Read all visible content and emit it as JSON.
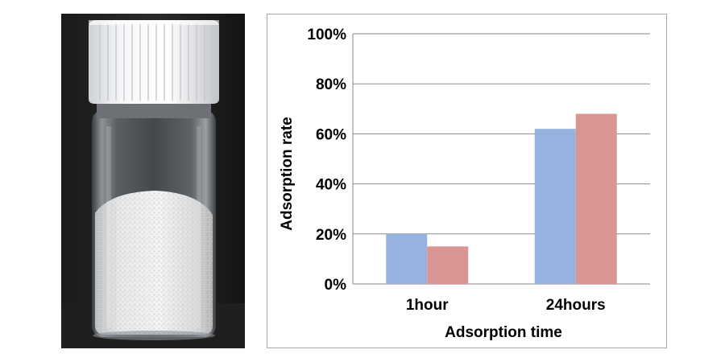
{
  "photo": {
    "name": "vial-photo"
  },
  "chart_data": {
    "type": "bar",
    "categories": [
      "1hour",
      "24hours"
    ],
    "series": [
      {
        "values": [
          20,
          62
        ],
        "color": "#95b3de"
      },
      {
        "values": [
          15,
          68
        ],
        "color": "#d99594"
      }
    ],
    "xlabel": "Adsorption time",
    "ylabel": "Adsorption rate",
    "ylim": [
      0,
      100
    ],
    "yticks": [
      {
        "value": 0,
        "label": "0%"
      },
      {
        "value": 20,
        "label": "20%"
      },
      {
        "value": 40,
        "label": "40%"
      },
      {
        "value": 60,
        "label": "60%"
      },
      {
        "value": 80,
        "label": "80%"
      },
      {
        "value": 100,
        "label": "100%"
      }
    ],
    "grid": true,
    "legend": "none",
    "gridline_color": "#8a8a8a"
  }
}
